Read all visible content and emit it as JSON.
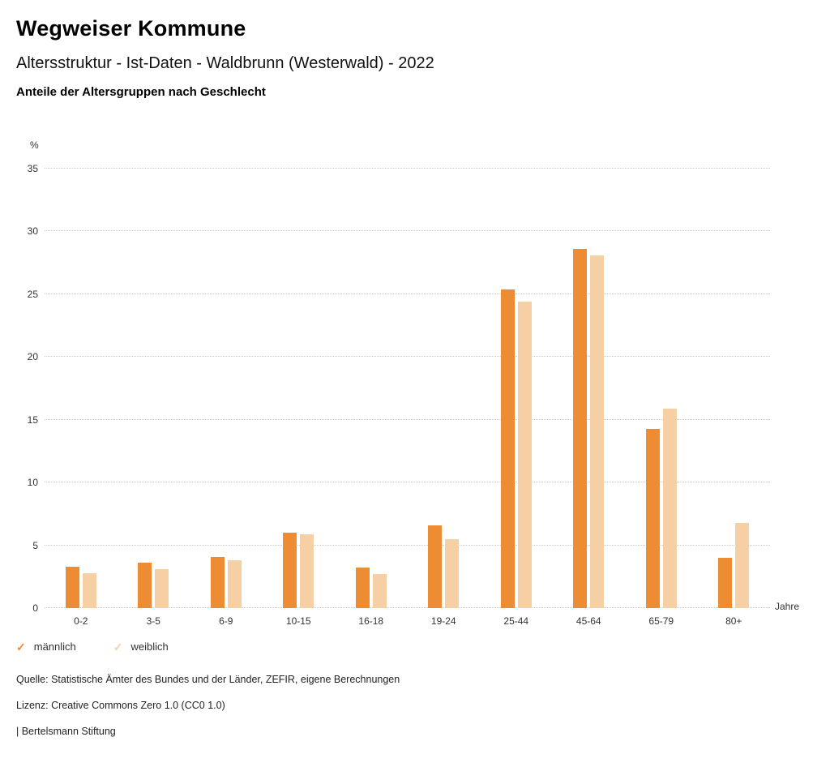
{
  "header": {
    "title": "Wegweiser Kommune",
    "subtitle": "Altersstruktur - Ist-Daten - Waldbrunn (Westerwald) - 2022",
    "heading": "Anteile der Altersgruppen nach Geschlecht"
  },
  "chart_data": {
    "type": "bar",
    "categories": [
      "0-2",
      "3-5",
      "6-9",
      "10-15",
      "16-18",
      "19-24",
      "25-44",
      "45-64",
      "65-79",
      "80+"
    ],
    "series": [
      {
        "name": "männlich",
        "color": "#ED8C33",
        "values": [
          3.3,
          3.6,
          4.1,
          6.0,
          3.2,
          6.6,
          25.4,
          28.6,
          14.3,
          4.0
        ]
      },
      {
        "name": "weiblich",
        "color": "#F6D0A4",
        "values": [
          2.8,
          3.1,
          3.8,
          5.9,
          2.7,
          5.5,
          24.4,
          28.1,
          15.9,
          6.8
        ]
      }
    ],
    "title": "Anteile der Altersgruppen nach Geschlecht",
    "xlabel": "Jahre",
    "ylabel": "%",
    "ylim": [
      0,
      35
    ],
    "yticks": [
      0,
      5,
      10,
      15,
      20,
      25,
      30,
      35
    ],
    "grid": "horizontal-dotted",
    "legend_position": "bottom-left"
  },
  "legend": {
    "items": [
      {
        "label": "männlich",
        "color": "#ED8C33",
        "marker": "check"
      },
      {
        "label": "weiblich",
        "color": "#F6D0A4",
        "marker": "check"
      }
    ]
  },
  "footer": {
    "source": "Quelle: Statistische Ämter des Bundes und der Länder, ZEFIR, eigene Berechnungen",
    "license": "Lizenz: Creative Commons Zero 1.0 (CC0 1.0)",
    "attribution": "| Bertelsmann Stiftung"
  }
}
